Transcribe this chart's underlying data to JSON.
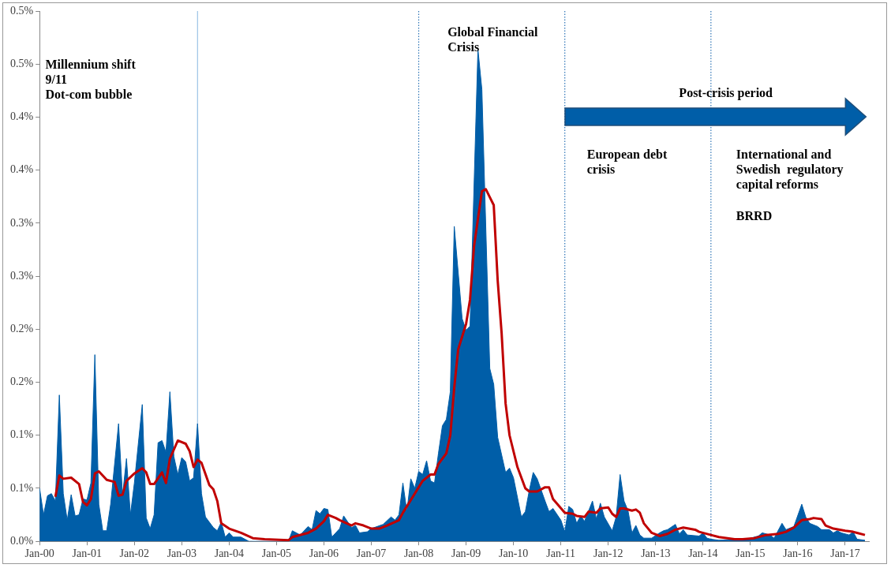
{
  "chart_data": {
    "type": "area",
    "xlim": [
      "2000-01",
      "2017-07"
    ],
    "ylim": [
      0,
      0.5
    ],
    "xticks": [
      {
        "value": "2000-01",
        "label": "Jan-00"
      },
      {
        "value": "2001-01",
        "label": "Jan-01"
      },
      {
        "value": "2002-01",
        "label": "Jan-02"
      },
      {
        "value": "2003-01",
        "label": "Jan-03"
      },
      {
        "value": "2004-01",
        "label": "Jan-04"
      },
      {
        "value": "2005-01",
        "label": "Jan-05"
      },
      {
        "value": "2006-01",
        "label": "Jan-06"
      },
      {
        "value": "2007-01",
        "label": "Jan-07"
      },
      {
        "value": "2008-01",
        "label": "Jan-08"
      },
      {
        "value": "2009-01",
        "label": "Jan-09"
      },
      {
        "value": "2010-01",
        "label": "Jan-10"
      },
      {
        "value": "2011-01",
        "label": "Jan-11"
      },
      {
        "value": "2012-01",
        "label": "Jan-12"
      },
      {
        "value": "2013-01",
        "label": "Jan-13"
      },
      {
        "value": "2014-01",
        "label": "Jan-14"
      },
      {
        "value": "2015-01",
        "label": "Jan-15"
      },
      {
        "value": "2016-01",
        "label": "Jan-16"
      },
      {
        "value": "2017-01",
        "label": "Jan-17"
      }
    ],
    "yticks": [
      {
        "value": 0,
        "label": "0.0%"
      },
      {
        "value": 0.05,
        "label": "0.1%"
      },
      {
        "value": 0.1,
        "label": "0.1%"
      },
      {
        "value": 0.15,
        "label": "0.2%"
      },
      {
        "value": 0.2,
        "label": "0.2%"
      },
      {
        "value": 0.25,
        "label": "0.3%"
      },
      {
        "value": 0.3,
        "label": "0.3%"
      },
      {
        "value": 0.35,
        "label": "0.4%"
      },
      {
        "value": 0.4,
        "label": "0.4%"
      },
      {
        "value": 0.45,
        "label": "0.5%"
      },
      {
        "value": 0.5,
        "label": "0.5%"
      }
    ],
    "series": [
      {
        "type": "area",
        "color": "#005ea8",
        "x": [
          "2000-01",
          "2000-02",
          "2000-03",
          "2000-04",
          "2000-05",
          "2000-06",
          "2000-07",
          "2000-08",
          "2000-09",
          "2000-10",
          "2000-11",
          "2000-12",
          "2001-01",
          "2001-02",
          "2001-03",
          "2001-04",
          "2001-05",
          "2001-06",
          "2001-07",
          "2001-09",
          "2001-10",
          "2001-11",
          "2001-12",
          "2002-01",
          "2002-03",
          "2002-04",
          "2002-05",
          "2002-06",
          "2002-07",
          "2002-08",
          "2002-09",
          "2002-10",
          "2002-11",
          "2002-12",
          "2003-01",
          "2003-02",
          "2003-03",
          "2003-04",
          "2003-05",
          "2003-06",
          "2003-07",
          "2003-09",
          "2003-10",
          "2003-11",
          "2003-12",
          "2004-01",
          "2004-02",
          "2004-04",
          "2004-06",
          "2005-04",
          "2005-05",
          "2005-07",
          "2005-09",
          "2005-10",
          "2005-11",
          "2005-12",
          "2006-01",
          "2006-02",
          "2006-03",
          "2006-05",
          "2006-06",
          "2006-08",
          "2006-09",
          "2006-10",
          "2006-12",
          "2007-01",
          "2007-04",
          "2007-06",
          "2007-07",
          "2007-08",
          "2007-09",
          "2007-10",
          "2007-11",
          "2007-12",
          "2008-01",
          "2008-02",
          "2008-03",
          "2008-04",
          "2008-05",
          "2008-06",
          "2008-07",
          "2008-08",
          "2008-09",
          "2008-10",
          "2008-12",
          "2009-01",
          "2009-02",
          "2009-04",
          "2009-05",
          "2009-07",
          "2009-08",
          "2009-09",
          "2009-11",
          "2009-12",
          "2010-01",
          "2010-03",
          "2010-04",
          "2010-05",
          "2010-06",
          "2010-07",
          "2010-09",
          "2010-10",
          "2010-11",
          "2011-01",
          "2011-02",
          "2011-03",
          "2011-04",
          "2011-05",
          "2011-06",
          "2011-07",
          "2011-09",
          "2011-10",
          "2011-11",
          "2011-12",
          "2012-02",
          "2012-03",
          "2012-04",
          "2012-05",
          "2012-06",
          "2012-07",
          "2012-08",
          "2012-09",
          "2012-10",
          "2012-12",
          "2013-02",
          "2013-03",
          "2013-04",
          "2013-06",
          "2013-07",
          "2013-08",
          "2013-09",
          "2013-12",
          "2014-01",
          "2014-02",
          "2014-03",
          "2014-05",
          "2014-12",
          "2015-03",
          "2015-04",
          "2015-06",
          "2015-07",
          "2015-09",
          "2015-10",
          "2015-12",
          "2016-02",
          "2016-03",
          "2016-04",
          "2016-06",
          "2016-07",
          "2016-09",
          "2016-10",
          "2016-11",
          "2016-12",
          "2017-02",
          "2017-03",
          "2017-04",
          "2017-06"
        ],
        "values": [
          0.05,
          0.025,
          0.043,
          0.045,
          0.038,
          0.138,
          0.045,
          0.02,
          0.044,
          0.024,
          0.025,
          0.04,
          0.039,
          0.055,
          0.176,
          0.035,
          0.01,
          0.01,
          0.035,
          0.111,
          0.043,
          0.078,
          0.025,
          0.055,
          0.129,
          0.022,
          0.012,
          0.025,
          0.093,
          0.095,
          0.084,
          0.141,
          0.08,
          0.063,
          0.079,
          0.075,
          0.057,
          0.06,
          0.111,
          0.045,
          0.023,
          0.013,
          0.01,
          0.018,
          0.004,
          0.008,
          0.004,
          0.004,
          0.0,
          0.0,
          0.01,
          0.006,
          0.014,
          0.011,
          0.029,
          0.026,
          0.031,
          0.03,
          0.004,
          0.012,
          0.024,
          0.013,
          0.015,
          0.008,
          0.009,
          0.012,
          0.016,
          0.023,
          0.02,
          0.025,
          0.055,
          0.028,
          0.059,
          0.05,
          0.066,
          0.063,
          0.076,
          0.057,
          0.055,
          0.083,
          0.109,
          0.115,
          0.141,
          0.297,
          0.21,
          0.199,
          0.203,
          0.464,
          0.426,
          0.163,
          0.148,
          0.098,
          0.065,
          0.069,
          0.06,
          0.023,
          0.028,
          0.048,
          0.065,
          0.059,
          0.038,
          0.028,
          0.031,
          0.02,
          0.009,
          0.033,
          0.03,
          0.017,
          0.024,
          0.019,
          0.038,
          0.021,
          0.036,
          0.023,
          0.01,
          0.023,
          0.063,
          0.038,
          0.029,
          0.008,
          0.015,
          0.006,
          0.003,
          0.003,
          0.008,
          0.01,
          0.011,
          0.016,
          0.007,
          0.011,
          0.006,
          0.005,
          0.008,
          0.003,
          0.002,
          0.001,
          0.002,
          0.005,
          0.008,
          0.006,
          0.003,
          0.017,
          0.011,
          0.014,
          0.035,
          0.023,
          0.017,
          0.014,
          0.011,
          0.011,
          0.008,
          0.01,
          0.008,
          0.006,
          0.009,
          0.002,
          0.001
        ]
      },
      {
        "type": "line",
        "color": "#c00000",
        "x": [
          "2000-05",
          "2000-06",
          "2000-07",
          "2000-09",
          "2000-11",
          "2000-12",
          "2001-01",
          "2001-02",
          "2001-03",
          "2001-04",
          "2001-06",
          "2001-08",
          "2001-09",
          "2001-10",
          "2001-11",
          "2002-01",
          "2002-03",
          "2002-04",
          "2002-05",
          "2002-06",
          "2002-08",
          "2002-09",
          "2002-10",
          "2002-12",
          "2003-02",
          "2003-03",
          "2003-04",
          "2003-05",
          "2003-06",
          "2003-08",
          "2003-09",
          "2003-10",
          "2003-11",
          "2004-01",
          "2004-04",
          "2004-07",
          "2004-10",
          "2005-04",
          "2005-05",
          "2005-09",
          "2005-11",
          "2006-01",
          "2006-02",
          "2006-04",
          "2006-05",
          "2006-08",
          "2006-09",
          "2006-11",
          "2007-01",
          "2007-03",
          "2007-05",
          "2007-08",
          "2007-09",
          "2007-10",
          "2007-12",
          "2008-02",
          "2008-04",
          "2008-05",
          "2008-06",
          "2008-08",
          "2008-09",
          "2008-10",
          "2008-11",
          "2009-01",
          "2009-02",
          "2009-03",
          "2009-05",
          "2009-06",
          "2009-08",
          "2009-09",
          "2009-10",
          "2009-11",
          "2009-12",
          "2010-02",
          "2010-04",
          "2010-05",
          "2010-07",
          "2010-09",
          "2010-10",
          "2010-11",
          "2011-02",
          "2011-04",
          "2011-05",
          "2011-07",
          "2011-08",
          "2011-10",
          "2011-11",
          "2012-01",
          "2012-02",
          "2012-03",
          "2012-04",
          "2012-05",
          "2012-07",
          "2012-08",
          "2012-09",
          "2012-10",
          "2012-12",
          "2013-02",
          "2013-04",
          "2013-06",
          "2013-08",
          "2013-11",
          "2013-12",
          "2014-03",
          "2014-05",
          "2014-09",
          "2014-11",
          "2015-02",
          "2015-05",
          "2015-08",
          "2015-10",
          "2015-12",
          "2016-02",
          "2016-04",
          "2016-05",
          "2016-07",
          "2016-08",
          "2016-10",
          "2017-01",
          "2017-03",
          "2017-04",
          "2017-06"
        ],
        "values": [
          0.042,
          0.062,
          0.059,
          0.06,
          0.054,
          0.037,
          0.034,
          0.04,
          0.064,
          0.066,
          0.058,
          0.056,
          0.043,
          0.044,
          0.057,
          0.064,
          0.069,
          0.065,
          0.054,
          0.054,
          0.065,
          0.055,
          0.078,
          0.095,
          0.092,
          0.085,
          0.07,
          0.077,
          0.074,
          0.053,
          0.049,
          0.038,
          0.017,
          0.012,
          0.008,
          0.003,
          0.002,
          0.001,
          0.004,
          0.008,
          0.012,
          0.019,
          0.025,
          0.022,
          0.02,
          0.015,
          0.017,
          0.015,
          0.012,
          0.012,
          0.015,
          0.02,
          0.027,
          0.033,
          0.045,
          0.057,
          0.063,
          0.063,
          0.073,
          0.083,
          0.1,
          0.145,
          0.181,
          0.205,
          0.228,
          0.278,
          0.33,
          0.332,
          0.317,
          0.246,
          0.196,
          0.13,
          0.1,
          0.07,
          0.05,
          0.047,
          0.047,
          0.051,
          0.051,
          0.04,
          0.027,
          0.026,
          0.024,
          0.023,
          0.028,
          0.027,
          0.031,
          0.032,
          0.026,
          0.023,
          0.031,
          0.031,
          0.029,
          0.03,
          0.027,
          0.017,
          0.008,
          0.005,
          0.007,
          0.011,
          0.013,
          0.011,
          0.009,
          0.006,
          0.004,
          0.002,
          0.002,
          0.003,
          0.006,
          0.007,
          0.009,
          0.013,
          0.02,
          0.021,
          0.022,
          0.021,
          0.015,
          0.012,
          0.01,
          0.009,
          0.008,
          0.006
        ]
      }
    ],
    "ref_lines": [
      {
        "axis": "x",
        "value": "2003-05",
        "color": "#9dc3e6",
        "line_style": "solid"
      },
      {
        "axis": "x",
        "value": "2008-01",
        "color": "#2e75b6",
        "line_style": "dotted"
      },
      {
        "axis": "x",
        "value": "2011-02",
        "color": "#2e75b6",
        "line_style": "dotted"
      },
      {
        "axis": "x",
        "value": "2014-03",
        "color": "#2e75b6",
        "line_style": "dotted"
      }
    ],
    "annotations": [
      "Millennium shift\n9/11\nDot-com bubble",
      "Global Financial\nCrisis",
      "Post-crisis period",
      "European debt\ncrisis",
      "International and\nSwedish  regulatory\ncapital reforms",
      "BRRD"
    ],
    "grid": false,
    "legend": false
  }
}
